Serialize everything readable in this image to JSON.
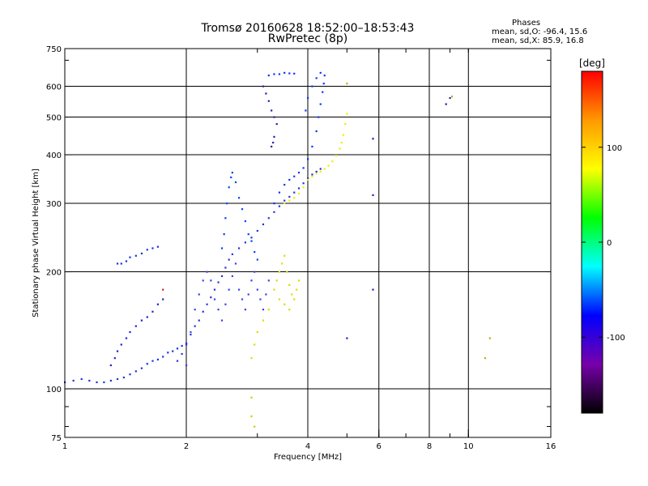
{
  "chart_data": {
    "type": "scatter",
    "title": "Tromsø 20160628 18:52:00–18:53:43",
    "subtitle": "RwPretec (8p)",
    "xlabel": "Frequency [MHz]",
    "ylabel": "Stationary phase Virtual Height [km]",
    "x_scale": "log",
    "y_scale": "log",
    "xlim": [
      1,
      16
    ],
    "ylim": [
      75,
      750
    ],
    "x_ticks": [
      1,
      2,
      4,
      6,
      8,
      10,
      16
    ],
    "y_ticks": [
      75,
      100,
      200,
      300,
      400,
      500,
      600,
      750
    ],
    "grid": true,
    "stats": {
      "heading": "Phases",
      "line_o": "mean, sd,O: -96.4, 15.6",
      "line_x": "mean, sd,X:  85.9, 16.8"
    },
    "colorbar": {
      "label": "[deg]",
      "range": [
        -180,
        180
      ],
      "ticks": [
        100,
        0,
        -100
      ],
      "colors": [
        "#ff0000",
        "#ff9900",
        "#ffff00",
        "#00ff00",
        "#00ffff",
        "#0000ff",
        "#7700aa",
        "#000000"
      ]
    },
    "series": [
      {
        "color": "#1a33dd",
        "points": [
          [
            1.0,
            104
          ],
          [
            1.05,
            105
          ],
          [
            1.1,
            106
          ],
          [
            1.15,
            105
          ],
          [
            1.2,
            104
          ],
          [
            1.25,
            104
          ],
          [
            1.3,
            105
          ],
          [
            1.35,
            106
          ],
          [
            1.4,
            107
          ],
          [
            1.45,
            109
          ],
          [
            1.5,
            111
          ],
          [
            1.55,
            113
          ],
          [
            1.6,
            116
          ],
          [
            1.65,
            118
          ],
          [
            1.7,
            119
          ],
          [
            1.75,
            121
          ],
          [
            1.8,
            124
          ],
          [
            1.85,
            125
          ],
          [
            1.9,
            127
          ],
          [
            1.95,
            129
          ],
          [
            2.0,
            131
          ]
        ]
      },
      {
        "color": "#1a33dd",
        "points": [
          [
            1.35,
            210
          ],
          [
            1.38,
            210
          ],
          [
            1.42,
            213
          ],
          [
            1.45,
            218
          ],
          [
            1.5,
            220
          ],
          [
            1.55,
            223
          ],
          [
            1.6,
            228
          ],
          [
            1.65,
            230
          ],
          [
            1.7,
            232
          ]
        ]
      },
      {
        "color": "#2222cc",
        "points": [
          [
            1.3,
            115
          ],
          [
            1.33,
            120
          ],
          [
            1.35,
            125
          ],
          [
            1.38,
            130
          ],
          [
            1.42,
            135
          ],
          [
            1.45,
            140
          ],
          [
            1.5,
            145
          ],
          [
            1.55,
            150
          ],
          [
            1.6,
            153
          ],
          [
            1.65,
            158
          ],
          [
            1.7,
            165
          ],
          [
            1.75,
            170
          ]
        ]
      },
      {
        "color": "#2233dd",
        "points": [
          [
            1.9,
            118
          ],
          [
            1.95,
            123
          ],
          [
            2.0,
            130
          ],
          [
            2.05,
            138
          ],
          [
            2.1,
            145
          ],
          [
            2.15,
            150
          ],
          [
            2.2,
            158
          ],
          [
            2.25,
            165
          ],
          [
            2.3,
            172
          ],
          [
            2.35,
            180
          ],
          [
            2.4,
            188
          ],
          [
            2.45,
            195
          ],
          [
            2.5,
            205
          ],
          [
            2.55,
            215
          ],
          [
            2.6,
            222
          ],
          [
            2.7,
            230
          ],
          [
            2.8,
            238
          ],
          [
            2.9,
            245
          ],
          [
            3.0,
            255
          ],
          [
            3.1,
            265
          ],
          [
            3.2,
            275
          ],
          [
            3.3,
            285
          ],
          [
            3.4,
            295
          ],
          [
            3.5,
            305
          ],
          [
            3.6,
            312
          ],
          [
            3.7,
            320
          ],
          [
            3.8,
            328
          ],
          [
            3.9,
            338
          ],
          [
            4.0,
            348
          ],
          [
            4.1,
            356
          ],
          [
            4.2,
            362
          ],
          [
            4.3,
            368
          ]
        ]
      },
      {
        "color": "#3344ee",
        "points": [
          [
            2.0,
            115
          ],
          [
            2.05,
            140
          ],
          [
            2.1,
            160
          ],
          [
            2.15,
            175
          ],
          [
            2.2,
            190
          ],
          [
            2.25,
            200
          ],
          [
            2.3,
            190
          ],
          [
            2.35,
            170
          ],
          [
            2.4,
            160
          ],
          [
            2.45,
            150
          ],
          [
            2.5,
            165
          ],
          [
            2.55,
            180
          ],
          [
            2.6,
            195
          ],
          [
            2.65,
            210
          ],
          [
            2.7,
            180
          ],
          [
            2.75,
            170
          ],
          [
            2.8,
            160
          ],
          [
            2.85,
            175
          ],
          [
            2.9,
            190
          ],
          [
            2.95,
            200
          ],
          [
            3.0,
            180
          ],
          [
            3.05,
            170
          ],
          [
            3.1,
            160
          ],
          [
            3.15,
            175
          ],
          [
            3.2,
            190
          ]
        ]
      },
      {
        "color": "#0044ff",
        "points": [
          [
            2.45,
            230
          ],
          [
            2.48,
            250
          ],
          [
            2.5,
            275
          ],
          [
            2.52,
            300
          ],
          [
            2.55,
            330
          ],
          [
            2.58,
            350
          ],
          [
            2.6,
            360
          ],
          [
            2.65,
            340
          ],
          [
            2.7,
            310
          ],
          [
            2.75,
            290
          ],
          [
            2.8,
            270
          ],
          [
            2.85,
            250
          ],
          [
            2.9,
            240
          ],
          [
            2.95,
            225
          ],
          [
            3.0,
            215
          ]
        ]
      },
      {
        "color": "#1133ff",
        "points": [
          [
            3.3,
            300
          ],
          [
            3.4,
            320
          ],
          [
            3.5,
            335
          ],
          [
            3.6,
            345
          ],
          [
            3.7,
            352
          ],
          [
            3.8,
            360
          ],
          [
            3.9,
            370
          ],
          [
            4.0,
            390
          ],
          [
            4.1,
            420
          ],
          [
            4.2,
            460
          ],
          [
            4.25,
            500
          ],
          [
            4.3,
            540
          ],
          [
            4.35,
            580
          ],
          [
            4.38,
            610
          ],
          [
            4.4,
            640
          ],
          [
            4.3,
            650
          ],
          [
            4.2,
            630
          ],
          [
            4.1,
            600
          ],
          [
            4.0,
            560
          ],
          [
            3.95,
            520
          ]
        ]
      },
      {
        "color": "#1133ff",
        "points": [
          [
            3.2,
            640
          ],
          [
            3.3,
            645
          ],
          [
            3.4,
            645
          ],
          [
            3.5,
            650
          ],
          [
            3.6,
            648
          ],
          [
            3.7,
            647
          ]
        ]
      },
      {
        "color": "#2222aa",
        "points": [
          [
            3.25,
            420
          ],
          [
            3.28,
            430
          ],
          [
            3.3,
            445
          ],
          [
            3.1,
            600
          ],
          [
            3.15,
            575
          ],
          [
            3.2,
            550
          ],
          [
            3.25,
            520
          ],
          [
            3.3,
            500
          ],
          [
            3.35,
            480
          ]
        ]
      },
      {
        "color": "#dddd00",
        "points": [
          [
            3.3,
            180
          ],
          [
            3.35,
            190
          ],
          [
            3.4,
            200
          ],
          [
            3.45,
            210
          ],
          [
            3.5,
            220
          ],
          [
            3.55,
            200
          ],
          [
            3.6,
            185
          ],
          [
            3.65,
            175
          ],
          [
            3.7,
            170
          ],
          [
            3.75,
            180
          ],
          [
            3.8,
            190
          ],
          [
            3.4,
            170
          ],
          [
            3.5,
            165
          ],
          [
            3.6,
            160
          ],
          [
            3.2,
            160
          ],
          [
            3.1,
            150
          ],
          [
            3.0,
            140
          ],
          [
            2.95,
            130
          ],
          [
            2.9,
            120
          ]
        ]
      },
      {
        "color": "#eeee00",
        "points": [
          [
            3.5,
            300
          ],
          [
            3.6,
            305
          ],
          [
            3.7,
            310
          ],
          [
            3.8,
            318
          ],
          [
            3.9,
            330
          ],
          [
            4.0,
            345
          ],
          [
            4.1,
            352
          ],
          [
            4.2,
            358
          ],
          [
            4.3,
            362
          ],
          [
            4.4,
            368
          ],
          [
            4.5,
            375
          ],
          [
            4.6,
            385
          ],
          [
            4.7,
            398
          ],
          [
            4.8,
            415
          ],
          [
            4.85,
            430
          ],
          [
            4.9,
            450
          ],
          [
            4.95,
            480
          ],
          [
            5.0,
            510
          ]
        ]
      },
      {
        "color": "#cccc00",
        "points": [
          [
            2.9,
            95
          ],
          [
            2.9,
            85
          ],
          [
            2.95,
            80
          ]
        ]
      },
      {
        "color": "#2222aa",
        "points": [
          [
            5.8,
            180
          ],
          [
            5.8,
            315
          ],
          [
            5.8,
            440
          ],
          [
            8.8,
            540
          ],
          [
            9.0,
            560
          ],
          [
            5.0,
            135
          ]
        ]
      },
      {
        "color": "#ccaa00",
        "points": [
          [
            11.0,
            120
          ],
          [
            11.3,
            135
          ],
          [
            9.1,
            565
          ],
          [
            5.0,
            610
          ]
        ]
      },
      {
        "color": "#cc2222",
        "points": [
          [
            1.75,
            180
          ]
        ]
      }
    ]
  }
}
